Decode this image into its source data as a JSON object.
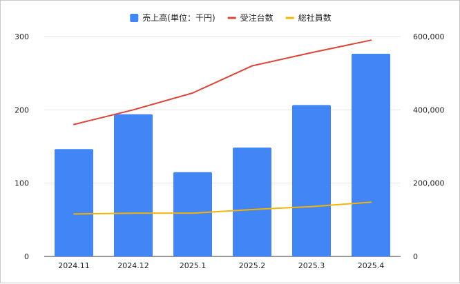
{
  "chart_data": {
    "type": "bar",
    "categories": [
      "2024.11",
      "2024.12",
      "2025.1",
      "2025.2",
      "2025.3",
      "2025.4"
    ],
    "series": [
      {
        "name": "売上高(単位：千円)",
        "type": "bar",
        "axis": "right",
        "color": "#4285F4",
        "values": [
          293000,
          388000,
          230000,
          297000,
          413000,
          553000
        ]
      },
      {
        "name": "受注台数",
        "type": "line",
        "axis": "left",
        "color": "#DB4437",
        "values": [
          180,
          200,
          223,
          260,
          278,
          295
        ]
      },
      {
        "name": "総社員数",
        "type": "line",
        "axis": "left",
        "color": "#F4B400",
        "values": [
          58,
          59,
          59,
          64,
          68,
          74
        ]
      }
    ],
    "y_left": {
      "min": 0,
      "max": 300,
      "ticks": [
        "0",
        "100",
        "200",
        "300"
      ],
      "tick_values": [
        0,
        100,
        200,
        300
      ]
    },
    "y_right": {
      "min": 0,
      "max": 600000,
      "ticks": [
        "0",
        "200,000",
        "400,000",
        "600,000"
      ],
      "tick_values": [
        0,
        200000,
        400000,
        600000
      ]
    },
    "title": "",
    "xlabel": "",
    "ylabel": "",
    "grid": true,
    "legend_position": "top"
  }
}
